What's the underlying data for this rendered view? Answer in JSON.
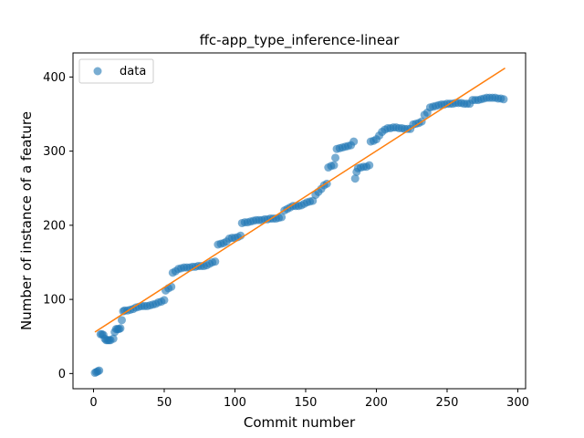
{
  "chart_data": {
    "type": "scatter",
    "title": "ffc-app_type_inference-linear",
    "xlabel": "Commit number",
    "ylabel": "Number of instance of a feature",
    "xlim": [
      -14.5,
      305.5
    ],
    "ylim": [
      -20.5,
      432.5
    ],
    "xticks": [
      0,
      50,
      100,
      150,
      200,
      250,
      300
    ],
    "yticks": [
      0,
      100,
      200,
      300,
      400
    ],
    "legend": {
      "position": "top-left",
      "entries": [
        "data"
      ]
    },
    "colors": {
      "points": "#1f77b4",
      "fit": "#ff7f0e"
    },
    "fit_line": {
      "x": [
        1,
        291
      ],
      "y": [
        56,
        412
      ]
    },
    "series": [
      {
        "name": "data",
        "points": [
          [
            1,
            1
          ],
          [
            2,
            2
          ],
          [
            3,
            3
          ],
          [
            4,
            4
          ],
          [
            5,
            53
          ],
          [
            6,
            53
          ],
          [
            7,
            52
          ],
          [
            8,
            47
          ],
          [
            9,
            45
          ],
          [
            10,
            45
          ],
          [
            11,
            45
          ],
          [
            12,
            45
          ],
          [
            14,
            47
          ],
          [
            15,
            56
          ],
          [
            16,
            60
          ],
          [
            17,
            60
          ],
          [
            18,
            60
          ],
          [
            19,
            61
          ],
          [
            20,
            72
          ],
          [
            21,
            84
          ],
          [
            22,
            85
          ],
          [
            24,
            85
          ],
          [
            26,
            86
          ],
          [
            28,
            87
          ],
          [
            30,
            89
          ],
          [
            32,
            90
          ],
          [
            34,
            91
          ],
          [
            36,
            91
          ],
          [
            38,
            91
          ],
          [
            40,
            92
          ],
          [
            42,
            93
          ],
          [
            44,
            94
          ],
          [
            46,
            96
          ],
          [
            48,
            97
          ],
          [
            50,
            99
          ],
          [
            51,
            112
          ],
          [
            53,
            115
          ],
          [
            55,
            117
          ],
          [
            56,
            136
          ],
          [
            58,
            138
          ],
          [
            60,
            141
          ],
          [
            62,
            142
          ],
          [
            64,
            143
          ],
          [
            66,
            143
          ],
          [
            68,
            143
          ],
          [
            70,
            144
          ],
          [
            72,
            144
          ],
          [
            74,
            145
          ],
          [
            76,
            145
          ],
          [
            78,
            145
          ],
          [
            80,
            146
          ],
          [
            82,
            148
          ],
          [
            84,
            150
          ],
          [
            86,
            151
          ],
          [
            88,
            174
          ],
          [
            90,
            175
          ],
          [
            92,
            176
          ],
          [
            94,
            178
          ],
          [
            96,
            182
          ],
          [
            98,
            183
          ],
          [
            100,
            183
          ],
          [
            102,
            184
          ],
          [
            104,
            186
          ],
          [
            105,
            203
          ],
          [
            107,
            204
          ],
          [
            109,
            204
          ],
          [
            111,
            205
          ],
          [
            113,
            206
          ],
          [
            115,
            207
          ],
          [
            117,
            207
          ],
          [
            119,
            207
          ],
          [
            121,
            208
          ],
          [
            123,
            208
          ],
          [
            125,
            209
          ],
          [
            127,
            209
          ],
          [
            129,
            209
          ],
          [
            131,
            210
          ],
          [
            133,
            211
          ],
          [
            135,
            220
          ],
          [
            137,
            222
          ],
          [
            139,
            224
          ],
          [
            141,
            226
          ],
          [
            143,
            226
          ],
          [
            145,
            226
          ],
          [
            147,
            227
          ],
          [
            149,
            229
          ],
          [
            151,
            231
          ],
          [
            153,
            232
          ],
          [
            155,
            233
          ],
          [
            157,
            241
          ],
          [
            159,
            245
          ],
          [
            161,
            249
          ],
          [
            163,
            254
          ],
          [
            165,
            256
          ],
          [
            166,
            278
          ],
          [
            168,
            280
          ],
          [
            170,
            281
          ],
          [
            171,
            291
          ],
          [
            172,
            303
          ],
          [
            174,
            304
          ],
          [
            176,
            305
          ],
          [
            178,
            306
          ],
          [
            180,
            307
          ],
          [
            182,
            308
          ],
          [
            184,
            313
          ],
          [
            185,
            263
          ],
          [
            186,
            272
          ],
          [
            187,
            277
          ],
          [
            189,
            278
          ],
          [
            191,
            279
          ],
          [
            193,
            279
          ],
          [
            195,
            281
          ],
          [
            196,
            313
          ],
          [
            198,
            314
          ],
          [
            200,
            316
          ],
          [
            202,
            321
          ],
          [
            204,
            326
          ],
          [
            206,
            329
          ],
          [
            208,
            331
          ],
          [
            210,
            331
          ],
          [
            212,
            332
          ],
          [
            214,
            332
          ],
          [
            216,
            331
          ],
          [
            218,
            331
          ],
          [
            220,
            330
          ],
          [
            222,
            330
          ],
          [
            224,
            330
          ],
          [
            226,
            336
          ],
          [
            228,
            337
          ],
          [
            230,
            338
          ],
          [
            232,
            340
          ],
          [
            234,
            349
          ],
          [
            236,
            352
          ],
          [
            238,
            359
          ],
          [
            240,
            360
          ],
          [
            242,
            361
          ],
          [
            244,
            362
          ],
          [
            246,
            363
          ],
          [
            248,
            363
          ],
          [
            250,
            364
          ],
          [
            252,
            364
          ],
          [
            254,
            364
          ],
          [
            256,
            365
          ],
          [
            258,
            365
          ],
          [
            260,
            365
          ],
          [
            262,
            364
          ],
          [
            264,
            364
          ],
          [
            266,
            364
          ],
          [
            268,
            369
          ],
          [
            270,
            369
          ],
          [
            272,
            369
          ],
          [
            274,
            370
          ],
          [
            276,
            371
          ],
          [
            278,
            372
          ],
          [
            280,
            372
          ],
          [
            282,
            372
          ],
          [
            284,
            372
          ],
          [
            286,
            371
          ],
          [
            288,
            371
          ],
          [
            290,
            370
          ]
        ]
      }
    ]
  }
}
